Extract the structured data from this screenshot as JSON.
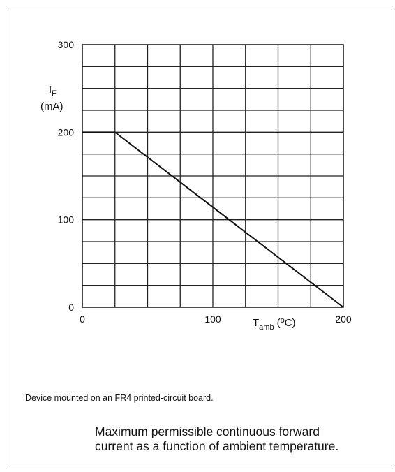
{
  "chart_data": {
    "type": "line",
    "series": [
      {
        "x": [
          0,
          25,
          200
        ],
        "y": [
          200,
          200,
          0
        ]
      }
    ],
    "xlim": [
      0,
      200
    ],
    "ylim": [
      0,
      300
    ],
    "x_ticks": [
      "0",
      "100",
      "200"
    ],
    "x_tick_values": [
      0,
      100,
      200
    ],
    "y_ticks": [
      "0",
      "100",
      "200",
      "300"
    ],
    "y_tick_values": [
      0,
      100,
      200,
      300
    ],
    "xlabel": {
      "main": "T",
      "sub": "amb",
      "unit": "(",
      "sup": "o",
      "unit_end": "C)"
    },
    "ylabel": {
      "main": "I",
      "sub": "F",
      "unit": "(mA)"
    },
    "grid": true,
    "line_color": "#111111"
  },
  "footnote": "Device mounted on an FR4 printed-circuit board.",
  "caption": {
    "line1": "Maximum permissible continuous forward",
    "line2": "current as a function of ambient temperature."
  }
}
